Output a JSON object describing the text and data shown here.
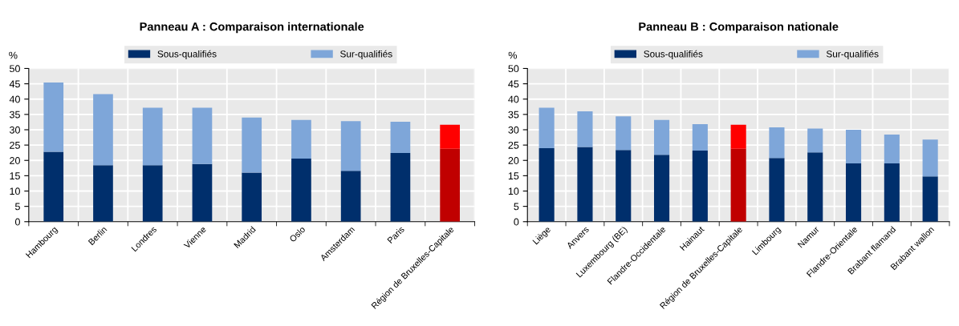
{
  "chart_data": [
    {
      "type": "bar",
      "title": "Panneau A : Comparaison internationale",
      "ylabel": "%",
      "stacked": true,
      "grid": true,
      "legend": "top",
      "categories": [
        "Hambourg",
        "Berlin",
        "Londres",
        "Vienne",
        "Madrid",
        "Oslo",
        "Amsterdam",
        "Paris",
        "Région de Bruxelles-Capitale"
      ],
      "ylim": [
        0,
        50
      ],
      "yticks": [
        0,
        5,
        10,
        15,
        20,
        25,
        30,
        35,
        40,
        45,
        50
      ],
      "series": [
        {
          "name": "Sous-qualifiés",
          "color": "#002f6c",
          "colors": [
            "#002f6c",
            "#002f6c",
            "#002f6c",
            "#002f6c",
            "#002f6c",
            "#002f6c",
            "#002f6c",
            "#002f6c",
            "#c00000"
          ],
          "values": [
            22.8,
            18.4,
            18.4,
            18.8,
            16.0,
            20.6,
            16.6,
            22.4,
            23.8
          ]
        },
        {
          "name": "Sur-qualifiés",
          "color": "#7ea6d9",
          "colors": [
            "#7ea6d9",
            "#7ea6d9",
            "#7ea6d9",
            "#7ea6d9",
            "#7ea6d9",
            "#7ea6d9",
            "#7ea6d9",
            "#7ea6d9",
            "#ff0000"
          ],
          "values": [
            22.6,
            23.2,
            18.8,
            18.4,
            18.0,
            12.6,
            16.2,
            10.2,
            7.8
          ]
        }
      ]
    },
    {
      "type": "bar",
      "title": "Panneau B : Comparaison nationale",
      "ylabel": "%",
      "stacked": true,
      "grid": true,
      "legend": "top",
      "categories": [
        "Liège",
        "Anvers",
        "Luxembourg (BE)",
        "Flandre-Occidentale",
        "Hainaut",
        "Région de Bruxelles-Capitale",
        "Limbourg",
        "Namur",
        "Flandre-Orientale",
        "Brabant flamand",
        "Brabant wallon"
      ],
      "ylim": [
        0,
        50
      ],
      "yticks": [
        0,
        5,
        10,
        15,
        20,
        25,
        30,
        35,
        40,
        45,
        50
      ],
      "series": [
        {
          "name": "Sous-qualifiés",
          "color": "#002f6c",
          "colors": [
            "#002f6c",
            "#002f6c",
            "#002f6c",
            "#002f6c",
            "#002f6c",
            "#c00000",
            "#002f6c",
            "#002f6c",
            "#002f6c",
            "#002f6c",
            "#002f6c"
          ],
          "values": [
            24.0,
            24.4,
            23.4,
            21.8,
            23.2,
            23.8,
            20.8,
            22.6,
            19.0,
            19.0,
            14.8
          ]
        },
        {
          "name": "Sur-qualifiés",
          "color": "#7ea6d9",
          "colors": [
            "#7ea6d9",
            "#7ea6d9",
            "#7ea6d9",
            "#7ea6d9",
            "#7ea6d9",
            "#ff0000",
            "#7ea6d9",
            "#7ea6d9",
            "#7ea6d9",
            "#7ea6d9",
            "#7ea6d9"
          ],
          "values": [
            13.2,
            11.6,
            11.0,
            11.4,
            8.6,
            7.8,
            10.0,
            7.8,
            11.0,
            9.4,
            12.0
          ]
        }
      ]
    }
  ]
}
